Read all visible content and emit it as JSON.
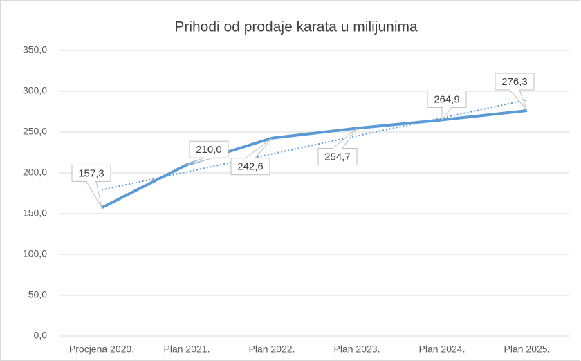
{
  "chart_data": {
    "type": "line",
    "title": "Prihodi od prodaje karata u milijunima",
    "categories": [
      "Procjena 2020.",
      "Plan 2021.",
      "Plan 2022.",
      "Plan 2023.",
      "Plan 2024.",
      "Plan 2025."
    ],
    "series": [
      {
        "name": "Prihodi",
        "color": "#5b9bd5",
        "values": [
          157.3,
          210.0,
          242.6,
          254.7,
          264.9,
          276.3
        ],
        "value_labels": [
          "157,3",
          "210,0",
          "242,6",
          "254,7",
          "264,9",
          "276,3"
        ]
      }
    ],
    "trendline": "linear",
    "ylim": [
      0,
      350
    ],
    "yticks": [
      {
        "value": 0,
        "label": "0,0"
      },
      {
        "value": 50,
        "label": "50,0"
      },
      {
        "value": 100,
        "label": "100,0"
      },
      {
        "value": 150,
        "label": "150,0"
      },
      {
        "value": 200,
        "label": "200,0"
      },
      {
        "value": 250,
        "label": "250,0"
      },
      {
        "value": 300,
        "label": "300,0"
      },
      {
        "value": 350,
        "label": "350,0"
      }
    ],
    "grid": true
  }
}
